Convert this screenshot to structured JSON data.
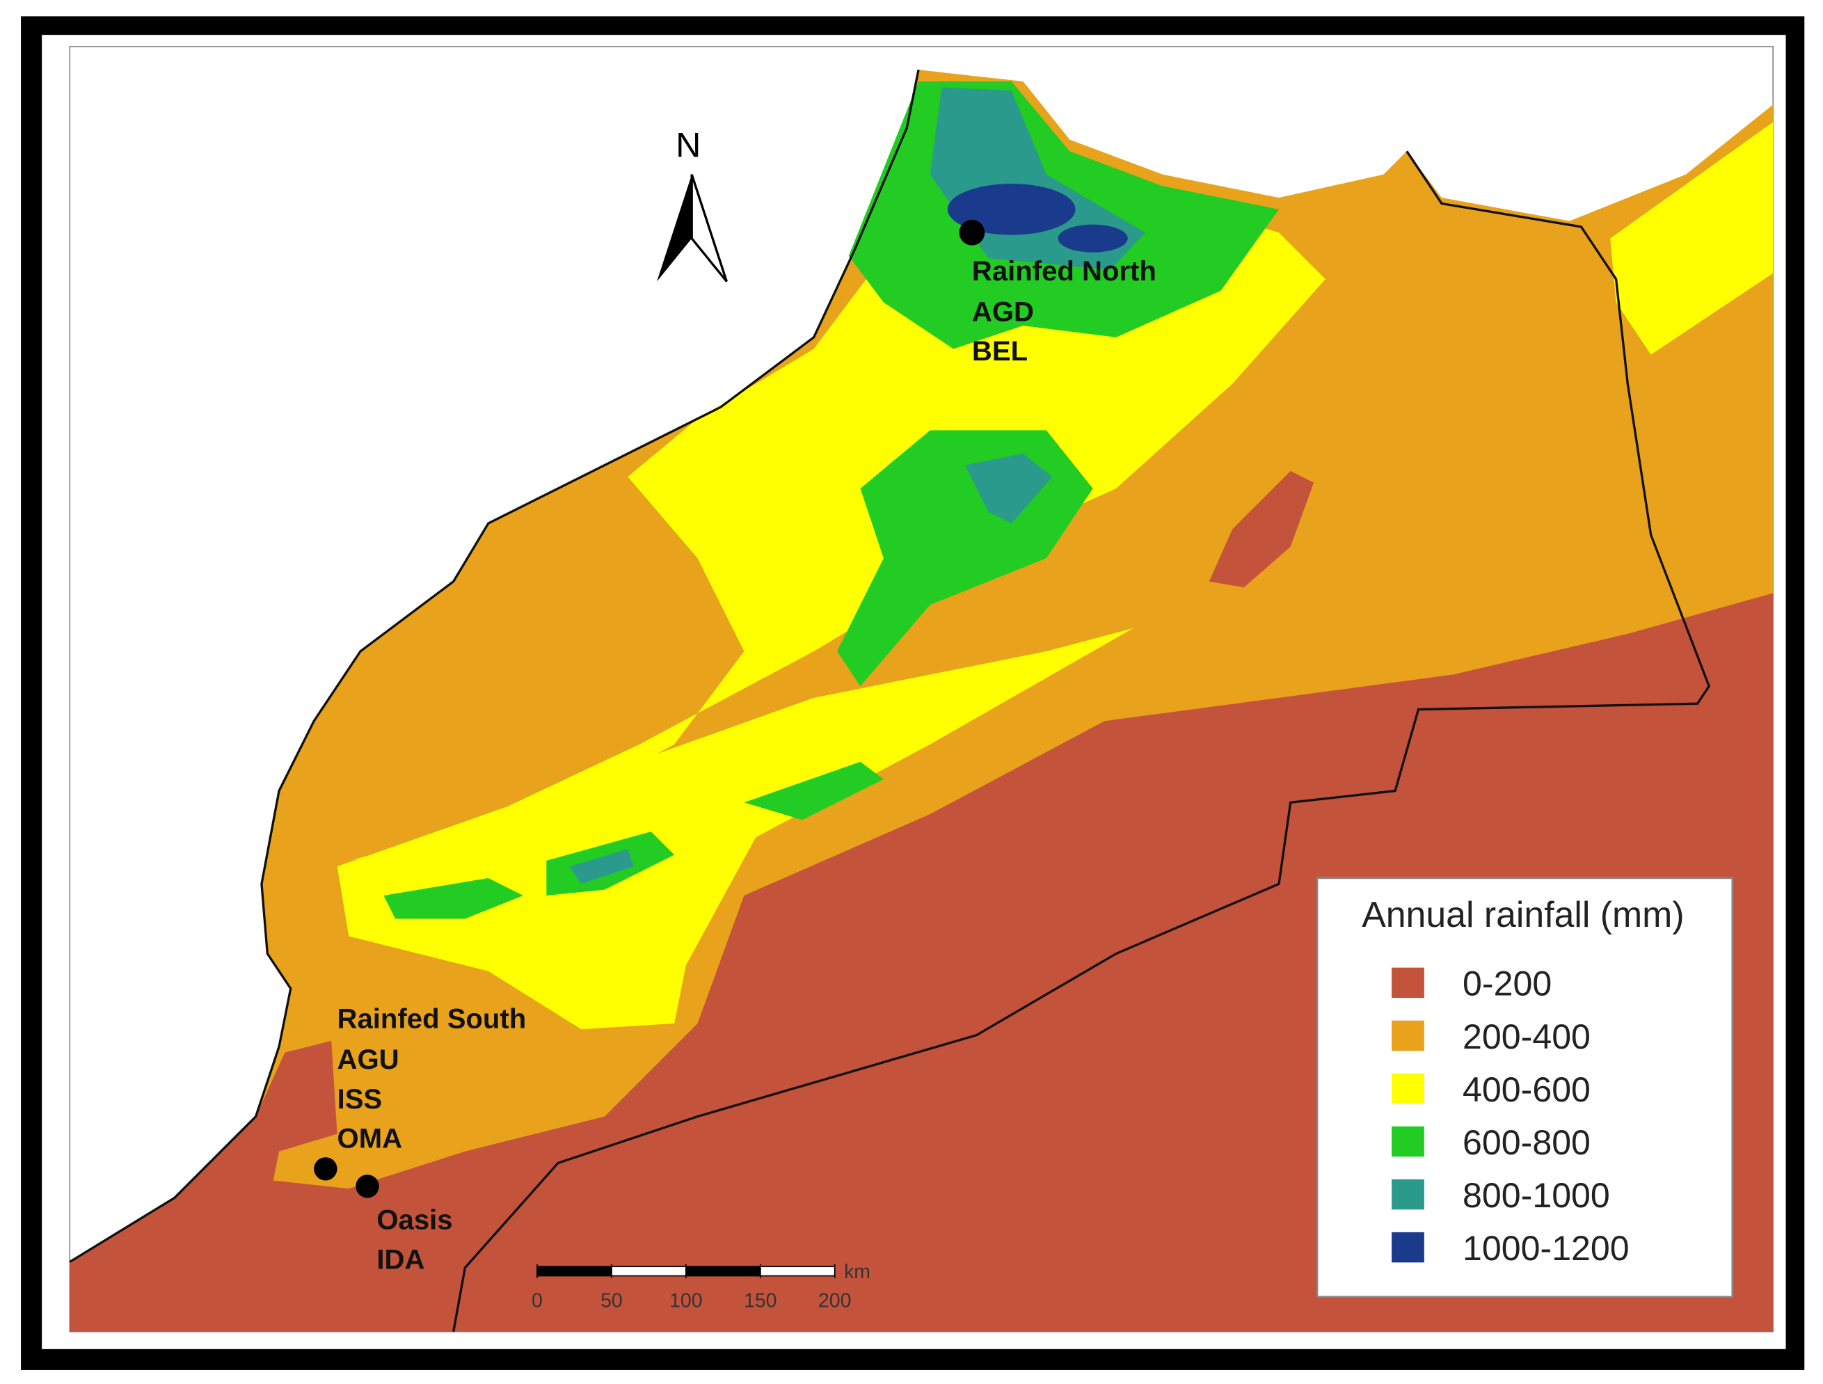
{
  "map": {
    "north_label": "N",
    "sites": [
      {
        "name": "Rainfed North",
        "codes": [
          "AGD",
          "BEL"
        ]
      },
      {
        "name": "Rainfed South",
        "codes": [
          "AGU",
          "ISS",
          "OMA"
        ]
      },
      {
        "name": "Oasis",
        "codes": [
          "IDA"
        ]
      }
    ],
    "legend": {
      "title": "Annual rainfall (mm)",
      "items": [
        {
          "label": "0-200",
          "color": "#c4533b"
        },
        {
          "label": "200-400",
          "color": "#e8a21c"
        },
        {
          "label": "400-600",
          "color": "#ffff00"
        },
        {
          "label": "600-800",
          "color": "#22cc22"
        },
        {
          "label": "800-1000",
          "color": "#2a9a8c"
        },
        {
          "label": "1000-1200",
          "color": "#1a3a8c"
        }
      ]
    },
    "scale_bar": {
      "unit": "km",
      "ticks": [
        0,
        50,
        100,
        150,
        200
      ]
    }
  }
}
